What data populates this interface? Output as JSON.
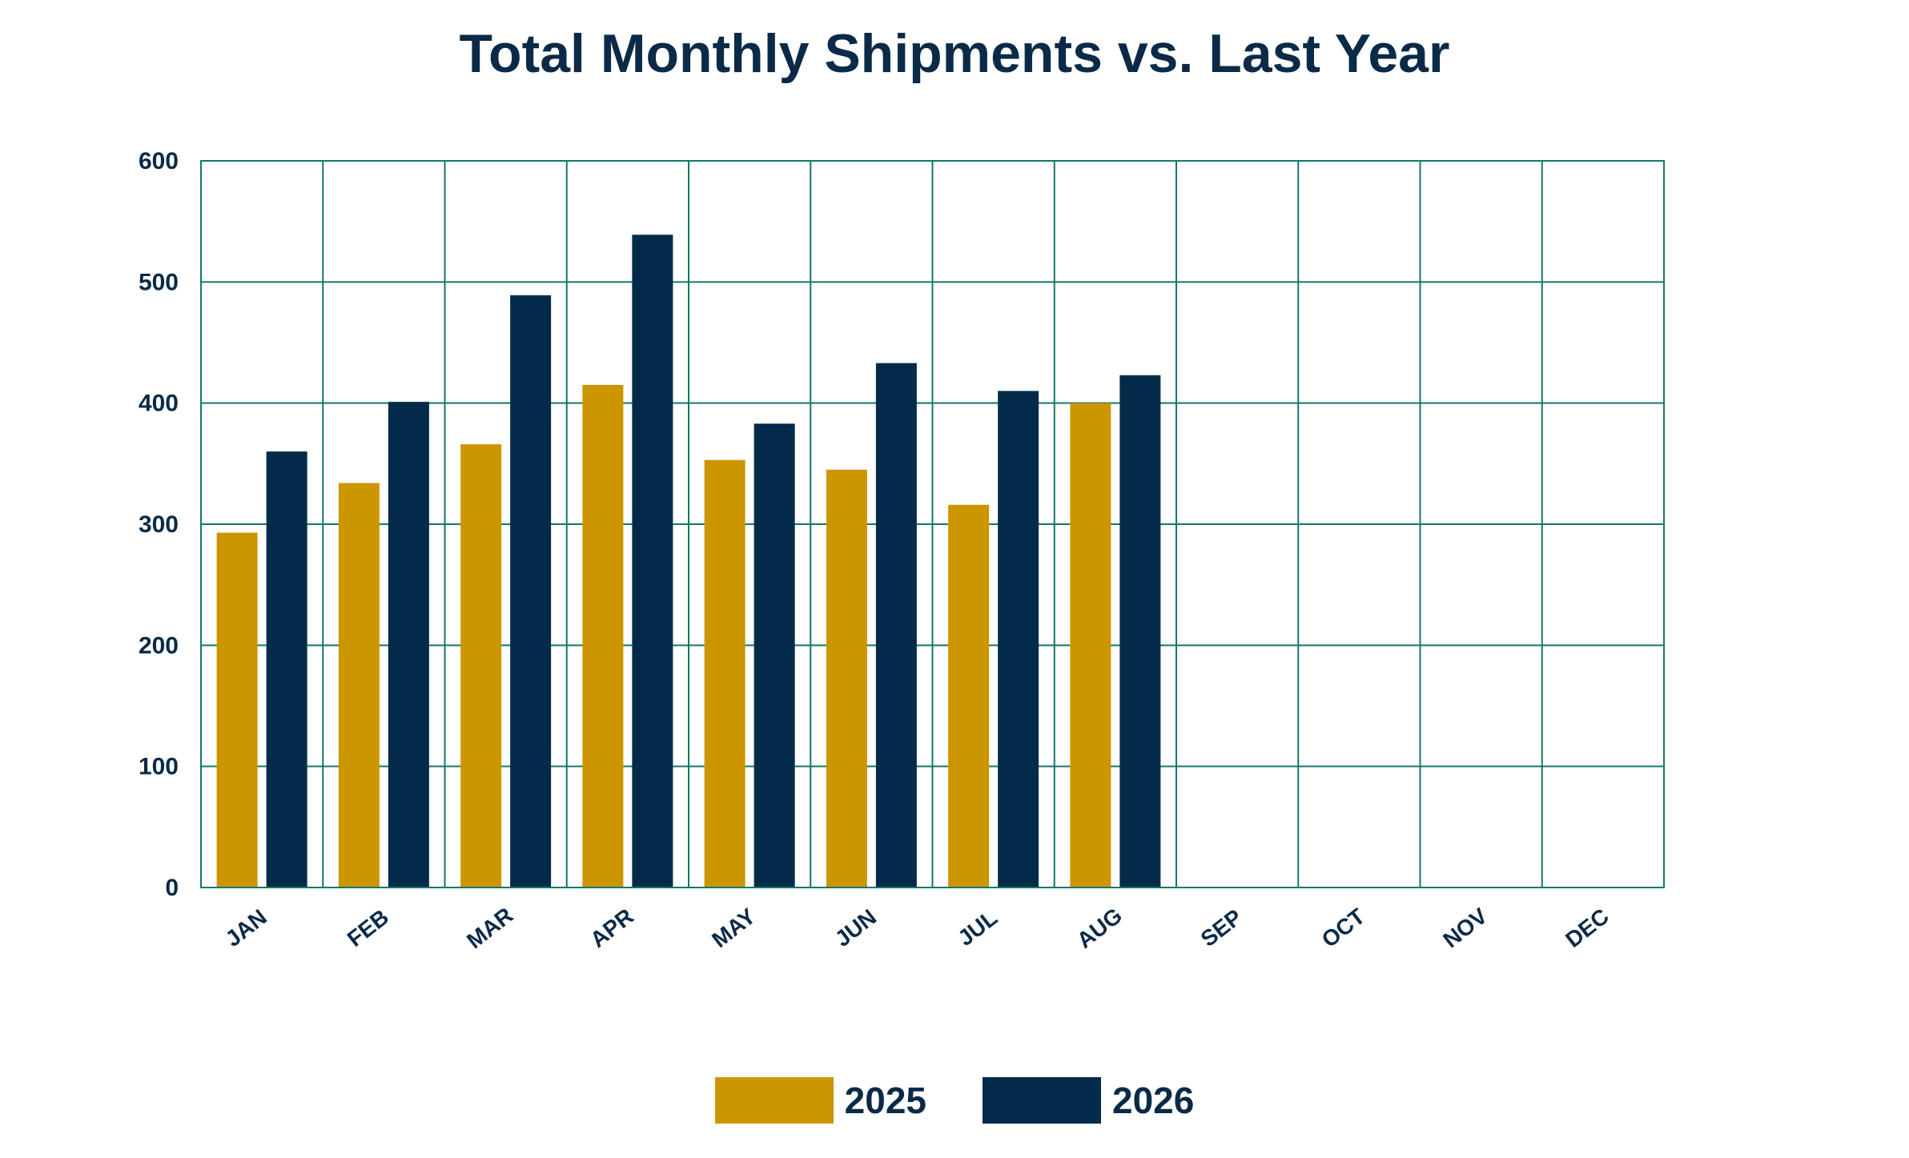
{
  "chart_data": {
    "type": "bar",
    "title": "Total Monthly Shipments vs. Last Year",
    "xlabel": "",
    "ylabel": "",
    "ylim": [
      0,
      600
    ],
    "yticks": [
      0,
      100,
      200,
      300,
      400,
      500,
      600
    ],
    "grid": true,
    "legend_position": "bottom",
    "categories": [
      "JAN",
      "FEB",
      "MAR",
      "APR",
      "MAY",
      "JUN",
      "JUL",
      "AUG",
      "SEP",
      "OCT",
      "NOV",
      "DEC"
    ],
    "series": [
      {
        "name": "2025",
        "color": "#cc9600",
        "values": [
          293,
          334,
          366,
          415,
          353,
          345,
          316,
          400,
          null,
          null,
          null,
          null
        ]
      },
      {
        "name": "2026",
        "color": "#022b49",
        "values": [
          360,
          401,
          489,
          539,
          383,
          433,
          410,
          423,
          null,
          null,
          null,
          null
        ]
      }
    ],
    "grid_color": "#13776a",
    "text_color": "#0b2a47"
  }
}
